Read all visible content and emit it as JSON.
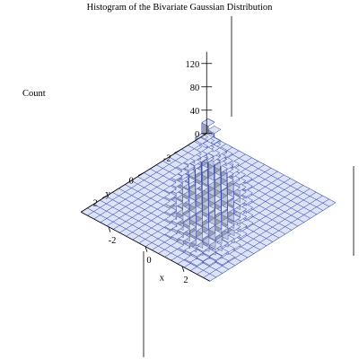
{
  "chart_data": {
    "type": "bar3d",
    "title": "Histogram of the Bivariate Gaussian Distribution",
    "zlabel": "Count",
    "xlabel": "x",
    "ylabel": "y",
    "x_ticks": [
      "-2",
      "0",
      "2"
    ],
    "y_ticks": [
      "-2",
      "0",
      "2"
    ],
    "z_ticks": [
      "0",
      "40",
      "80",
      "120"
    ],
    "x_range": [
      -3.5,
      3.5
    ],
    "y_range": [
      -3.5,
      3.5
    ],
    "z_range": [
      0,
      140
    ],
    "bin_width": 0.35,
    "grid_size": 20,
    "distribution": {
      "sx": 1.0,
      "sy": 1.0,
      "rho": 0.7,
      "peak": 130
    },
    "colors": {
      "top": "#dce3f7",
      "side_left": "#bfc7db",
      "side_right": "#9aa1b3",
      "edge": "#3a48a8",
      "floor": "#e8ecfb"
    }
  }
}
